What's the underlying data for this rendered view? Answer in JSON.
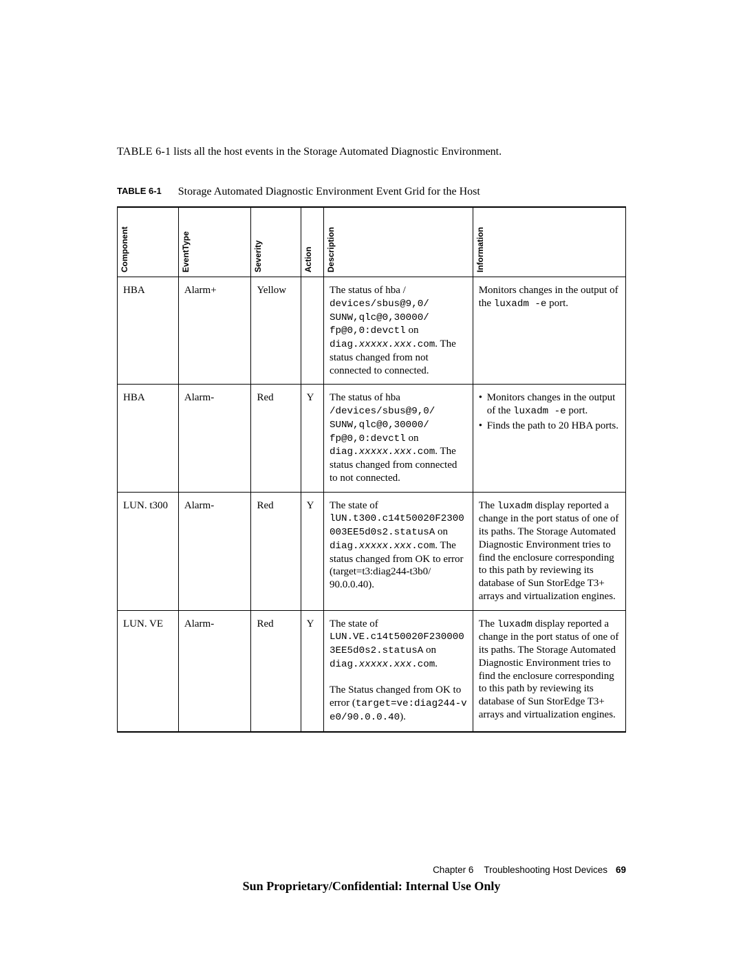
{
  "intro": {
    "prefix": "TABLE 6-1",
    "text": " lists all the host events in the Storage Automated Diagnostic Environment."
  },
  "tableCaption": {
    "label": "TABLE 6-1",
    "text": "Storage Automated Diagnostic Environment Event Grid for the Host"
  },
  "columns": {
    "component": "Component",
    "eventType": "EventType",
    "severity": "Severity",
    "action": "Action",
    "description": "Description",
    "information": "Information"
  },
  "rows": [
    {
      "component": "HBA",
      "eventType": "Alarm+",
      "severity": "Yellow",
      "action": "",
      "desc": {
        "line1": "The status of hba /",
        "mono1": "devices/sbus@9,0/",
        "mono2": "SUNW,qlc@0,30000/",
        "mono3a": "fp@0,0:devctl",
        "mono3b": " on",
        "mono4": "diag.",
        "italic4": "xxxxx.xxx",
        "mono4b": ".com",
        "tail": ". The status changed from not connected to connected."
      },
      "info": {
        "line1a": "Monitors changes in the output of the ",
        "mono1": "luxadm -e",
        "line1b": " port."
      }
    },
    {
      "component": "HBA",
      "eventType": "Alarm-",
      "severity": "Red",
      "action": "Y",
      "desc": {
        "line1": "The status of hba",
        "mono1": "/devices/sbus@9,0/",
        "mono2": "SUNW,qlc@0,30000/",
        "mono3a": "fp@0,0:devctl",
        "mono3b": " on",
        "mono4": "diag.",
        "italic4": "xxxxx.xxx",
        "mono4b": ".com",
        "tail": ". The status changed from connected to not connected."
      },
      "info": {
        "b1a": "Monitors changes in the output of the ",
        "b1m": "luxadm -e",
        "b1b": " port.",
        "b2": "Finds the path to 20 HBA ports."
      }
    },
    {
      "component": "LUN. t300",
      "eventType": "Alarm-",
      "severity": "Red",
      "action": "Y",
      "desc": {
        "line1": "The state of ",
        "mono1": "lUN.t300.c14t50020F2300003EE5d0s2.statusA",
        "on": " on",
        "mono2": "diag.",
        "italic2": "xxxxx.xxx",
        "mono2b": ".com",
        "tail": ". The status changed from OK to error (target=t3:diag244-t3b0/ 90.0.0.40)."
      },
      "info": {
        "pre": "The ",
        "mono": "luxadm",
        "post": " display reported a change in the port status of one of its paths. The Storage Automated Diagnostic Environment tries to find the enclosure corresponding to this path by reviewing its database of Sun StorEdge T3+ arrays and virtualization engines."
      }
    },
    {
      "component": "LUN. VE",
      "eventType": "Alarm-",
      "severity": "Red",
      "action": "Y",
      "desc": {
        "line1": "The state of ",
        "mono1": "LUN.VE.c14t50020F2300003EE5d0s2.statusA",
        "on": " on ",
        "mono2": "diag.",
        "italic2": "xxxxx.xxx",
        "mono2b": ".com",
        "blank": " ",
        "tail": "The Status changed from OK to error (",
        "monoTail": "target=ve:diag244-ve0/90.0.0.40",
        "tail2": ")."
      },
      "info": {
        "pre": "The ",
        "mono": "luxadm",
        "post": " display reported a change in the port status of one of its paths. The Storage Automated Diagnostic Environment tries to find the enclosure corresponding to this path by reviewing its database of Sun StorEdge T3+ arrays and virtualization engines."
      }
    }
  ],
  "footer": {
    "chapter": "Chapter 6",
    "title": "Troubleshooting Host Devices",
    "page": "69",
    "confidential": "Sun Proprietary/Confidential: Internal Use Only"
  }
}
